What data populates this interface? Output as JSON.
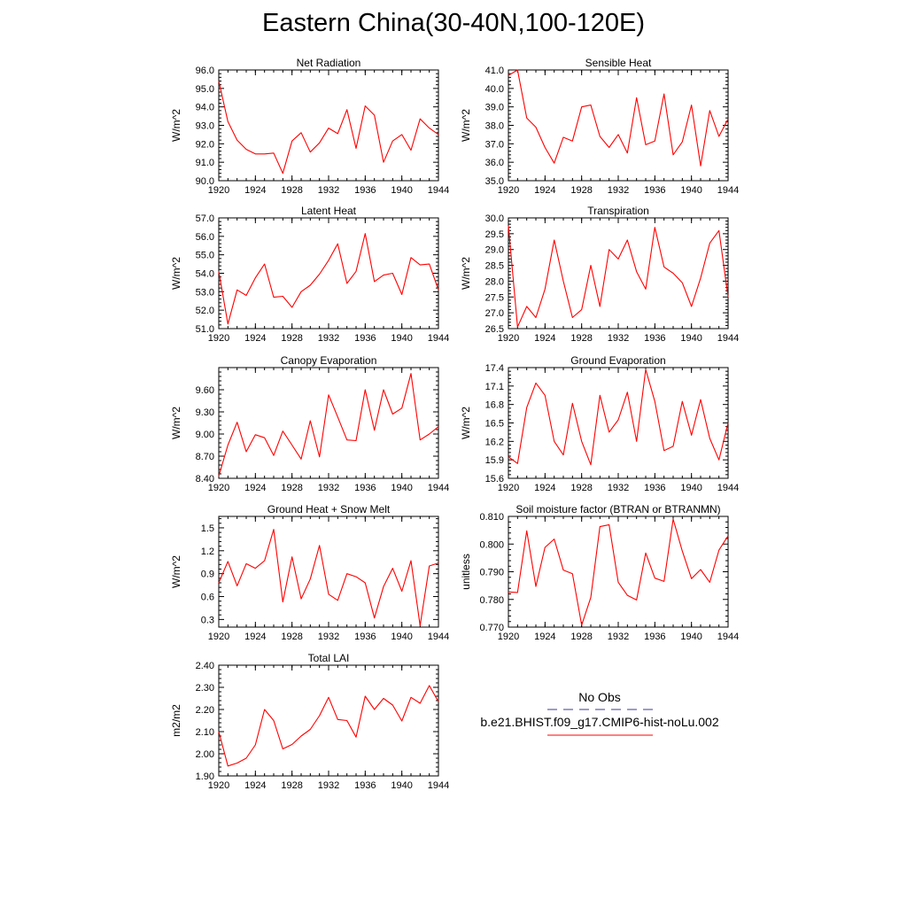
{
  "title": "Eastern China(30-40N,100-120E)",
  "legend": {
    "obs_label": "No Obs",
    "obs_color": "#3a3a9a",
    "run_label": "b.e21.BHIST.f09_g17.CMIP6-hist-noLu.002",
    "run_color": "#ff0000"
  },
  "chart_data": [
    {
      "type": "line",
      "title": "Net Radiation",
      "ylabel": "W/m^2",
      "xlim": [
        1920,
        1944
      ],
      "ylim": [
        90.0,
        96.0
      ],
      "xticks": [
        "1920",
        "1924",
        "1928",
        "1932",
        "1936",
        "1940",
        "1944"
      ],
      "yticks": [
        "90.0",
        "91.0",
        "92.0",
        "93.0",
        "94.0",
        "95.0",
        "96.0"
      ],
      "x": [
        1920,
        1921,
        1922,
        1923,
        1924,
        1925,
        1926,
        1927,
        1928,
        1929,
        1930,
        1931,
        1932,
        1933,
        1934,
        1935,
        1936,
        1937,
        1938,
        1939,
        1940,
        1941,
        1942,
        1943,
        1944
      ],
      "series": [
        {
          "color": "#ff0000",
          "values": [
            95.4,
            93.2,
            92.2,
            91.7,
            91.45,
            91.45,
            91.5,
            90.4,
            92.15,
            92.6,
            91.55,
            92.05,
            92.85,
            92.55,
            93.85,
            91.75,
            94.05,
            93.55,
            91.0,
            92.15,
            92.5,
            91.65,
            93.35,
            92.85,
            92.5
          ]
        }
      ]
    },
    {
      "type": "line",
      "title": "Sensible Heat",
      "ylabel": "W/m^2",
      "xlim": [
        1920,
        1944
      ],
      "ylim": [
        35.0,
        41.0
      ],
      "xticks": [
        "1920",
        "1924",
        "1928",
        "1932",
        "1936",
        "1940",
        "1944"
      ],
      "yticks": [
        "35.0",
        "36.0",
        "37.0",
        "38.0",
        "39.0",
        "40.0",
        "41.0"
      ],
      "x": [
        1920,
        1921,
        1922,
        1923,
        1924,
        1925,
        1926,
        1927,
        1928,
        1929,
        1930,
        1931,
        1932,
        1933,
        1934,
        1935,
        1936,
        1937,
        1938,
        1939,
        1940,
        1941,
        1942,
        1943,
        1944
      ],
      "series": [
        {
          "color": "#ff0000",
          "values": [
            40.7,
            41.0,
            38.4,
            37.9,
            36.8,
            35.95,
            37.35,
            37.15,
            39.0,
            39.1,
            37.4,
            36.8,
            37.5,
            36.5,
            39.5,
            36.95,
            37.15,
            39.7,
            36.4,
            37.1,
            39.1,
            35.8,
            38.8,
            37.4,
            38.35
          ]
        }
      ]
    },
    {
      "type": "line",
      "title": "Latent Heat",
      "ylabel": "W/m^2",
      "xlim": [
        1920,
        1944
      ],
      "ylim": [
        51.0,
        57.0
      ],
      "xticks": [
        "1920",
        "1924",
        "1928",
        "1932",
        "1936",
        "1940",
        "1944"
      ],
      "yticks": [
        "51.0",
        "52.0",
        "53.0",
        "54.0",
        "55.0",
        "56.0",
        "57.0"
      ],
      "x": [
        1920,
        1921,
        1922,
        1923,
        1924,
        1925,
        1926,
        1927,
        1928,
        1929,
        1930,
        1931,
        1932,
        1933,
        1934,
        1935,
        1936,
        1937,
        1938,
        1939,
        1940,
        1941,
        1942,
        1943,
        1944
      ],
      "series": [
        {
          "color": "#ff0000",
          "values": [
            54.1,
            51.25,
            53.1,
            52.8,
            53.75,
            54.5,
            52.7,
            52.75,
            52.15,
            53.0,
            53.35,
            53.95,
            54.7,
            55.6,
            53.45,
            54.1,
            56.15,
            53.55,
            53.9,
            54.0,
            52.85,
            54.85,
            54.45,
            54.5,
            53.1
          ]
        }
      ]
    },
    {
      "type": "line",
      "title": "Transpiration",
      "ylabel": "W/m^2",
      "xlim": [
        1920,
        1944
      ],
      "ylim": [
        26.5,
        30.0
      ],
      "xticks": [
        "1920",
        "1924",
        "1928",
        "1932",
        "1936",
        "1940",
        "1944"
      ],
      "yticks": [
        "26.5",
        "27.0",
        "27.5",
        "28.0",
        "28.5",
        "29.0",
        "29.5",
        "30.0"
      ],
      "x": [
        1920,
        1921,
        1922,
        1923,
        1924,
        1925,
        1926,
        1927,
        1928,
        1929,
        1930,
        1931,
        1932,
        1933,
        1934,
        1935,
        1936,
        1937,
        1938,
        1939,
        1940,
        1941,
        1942,
        1943,
        1944
      ],
      "series": [
        {
          "color": "#ff0000",
          "values": [
            29.75,
            26.55,
            27.2,
            26.85,
            27.75,
            29.3,
            28.0,
            26.85,
            27.1,
            28.5,
            27.2,
            29.0,
            28.7,
            29.3,
            28.3,
            27.75,
            29.7,
            28.45,
            28.25,
            27.95,
            27.2,
            28.1,
            29.2,
            29.6,
            27.5
          ]
        }
      ]
    },
    {
      "type": "line",
      "title": "Canopy Evaporation",
      "ylabel": "W/m^2",
      "xlim": [
        1920,
        1944
      ],
      "ylim": [
        8.4,
        9.9
      ],
      "xticks": [
        "1920",
        "1924",
        "1928",
        "1932",
        "1936",
        "1940",
        "1944"
      ],
      "yticks": [
        "8.40",
        "8.70",
        "9.00",
        "9.30",
        "9.60"
      ],
      "x": [
        1920,
        1921,
        1922,
        1923,
        1924,
        1925,
        1926,
        1927,
        1928,
        1929,
        1930,
        1931,
        1932,
        1933,
        1934,
        1935,
        1936,
        1937,
        1938,
        1939,
        1940,
        1941,
        1942,
        1943,
        1944
      ],
      "series": [
        {
          "color": "#ff0000",
          "values": [
            8.43,
            8.85,
            9.16,
            8.76,
            8.99,
            8.95,
            8.71,
            9.04,
            8.85,
            8.66,
            9.18,
            8.69,
            9.53,
            9.23,
            8.92,
            8.91,
            9.6,
            9.05,
            9.6,
            9.27,
            9.35,
            9.82,
            8.92,
            9.0,
            9.1
          ]
        }
      ]
    },
    {
      "type": "line",
      "title": "Ground Evaporation",
      "ylabel": "W/m^2",
      "xlim": [
        1920,
        1944
      ],
      "ylim": [
        15.6,
        17.4
      ],
      "xticks": [
        "1920",
        "1924",
        "1928",
        "1932",
        "1936",
        "1940",
        "1944"
      ],
      "yticks": [
        "15.6",
        "15.9",
        "16.2",
        "16.5",
        "16.8",
        "17.1",
        "17.4"
      ],
      "x": [
        1920,
        1921,
        1922,
        1923,
        1924,
        1925,
        1926,
        1927,
        1928,
        1929,
        1930,
        1931,
        1932,
        1933,
        1934,
        1935,
        1936,
        1937,
        1938,
        1939,
        1940,
        1941,
        1942,
        1943,
        1944
      ],
      "series": [
        {
          "color": "#ff0000",
          "values": [
            15.95,
            15.84,
            16.75,
            17.15,
            16.95,
            16.2,
            15.98,
            16.82,
            16.2,
            15.82,
            16.95,
            16.35,
            16.55,
            17.0,
            16.2,
            17.37,
            16.85,
            16.05,
            16.12,
            16.85,
            16.3,
            16.88,
            16.25,
            15.9,
            16.5
          ]
        }
      ]
    },
    {
      "type": "line",
      "title": "Ground Heat + Snow Melt",
      "ylabel": "W/m^2",
      "xlim": [
        1920,
        1944
      ],
      "ylim": [
        0.2,
        1.65
      ],
      "xticks": [
        "1920",
        "1924",
        "1928",
        "1932",
        "1936",
        "1940",
        "1944"
      ],
      "yticks": [
        "0.3",
        "0.6",
        "0.9",
        "1.2",
        "1.5"
      ],
      "x": [
        1920,
        1921,
        1922,
        1923,
        1924,
        1925,
        1926,
        1927,
        1928,
        1929,
        1930,
        1931,
        1932,
        1933,
        1934,
        1935,
        1936,
        1937,
        1938,
        1939,
        1940,
        1941,
        1942,
        1943,
        1944
      ],
      "series": [
        {
          "color": "#ff0000",
          "values": [
            0.78,
            1.06,
            0.74,
            1.03,
            0.97,
            1.07,
            1.48,
            0.53,
            1.12,
            0.57,
            0.83,
            1.27,
            0.63,
            0.55,
            0.9,
            0.86,
            0.78,
            0.32,
            0.73,
            0.97,
            0.67,
            1.07,
            0.22,
            1.0,
            1.04
          ]
        }
      ]
    },
    {
      "type": "line",
      "title": "Soil moisture factor (BTRAN or BTRANMN)",
      "ylabel": "unitless",
      "xlim": [
        1920,
        1944
      ],
      "ylim": [
        0.77,
        0.81
      ],
      "xticks": [
        "1920",
        "1924",
        "1928",
        "1932",
        "1936",
        "1940",
        "1944"
      ],
      "yticks": [
        "0.770",
        "0.780",
        "0.790",
        "0.800",
        "0.810"
      ],
      "x": [
        1920,
        1921,
        1922,
        1923,
        1924,
        1925,
        1926,
        1927,
        1928,
        1929,
        1930,
        1931,
        1932,
        1933,
        1934,
        1935,
        1936,
        1937,
        1938,
        1939,
        1940,
        1941,
        1942,
        1943,
        1944
      ],
      "series": [
        {
          "color": "#ff0000",
          "values": [
            0.7827,
            0.7825,
            0.8048,
            0.7847,
            0.7988,
            0.8018,
            0.7906,
            0.7893,
            0.7707,
            0.7807,
            0.8063,
            0.807,
            0.7862,
            0.7815,
            0.7798,
            0.7968,
            0.7877,
            0.7865,
            0.809,
            0.7975,
            0.7875,
            0.7908,
            0.7862,
            0.7978,
            0.803
          ]
        }
      ]
    },
    {
      "type": "line",
      "title": "Total LAI",
      "ylabel": "m2/m2",
      "xlim": [
        1920,
        1944
      ],
      "ylim": [
        1.9,
        2.4
      ],
      "xticks": [
        "1920",
        "1924",
        "1928",
        "1932",
        "1936",
        "1940",
        "1944"
      ],
      "yticks": [
        "1.90",
        "2.00",
        "2.10",
        "2.20",
        "2.30",
        "2.40"
      ],
      "x": [
        1920,
        1921,
        1922,
        1923,
        1924,
        1925,
        1926,
        1927,
        1928,
        1929,
        1930,
        1931,
        1932,
        1933,
        1934,
        1935,
        1936,
        1937,
        1938,
        1939,
        1940,
        1941,
        1942,
        1943,
        1944
      ],
      "series": [
        {
          "color": "#ff0000",
          "values": [
            2.1,
            1.945,
            1.958,
            1.98,
            2.04,
            2.2,
            2.15,
            2.022,
            2.042,
            2.08,
            2.11,
            2.172,
            2.255,
            2.155,
            2.15,
            2.075,
            2.26,
            2.2,
            2.25,
            2.22,
            2.148,
            2.255,
            2.228,
            2.308,
            2.235
          ]
        }
      ]
    }
  ]
}
